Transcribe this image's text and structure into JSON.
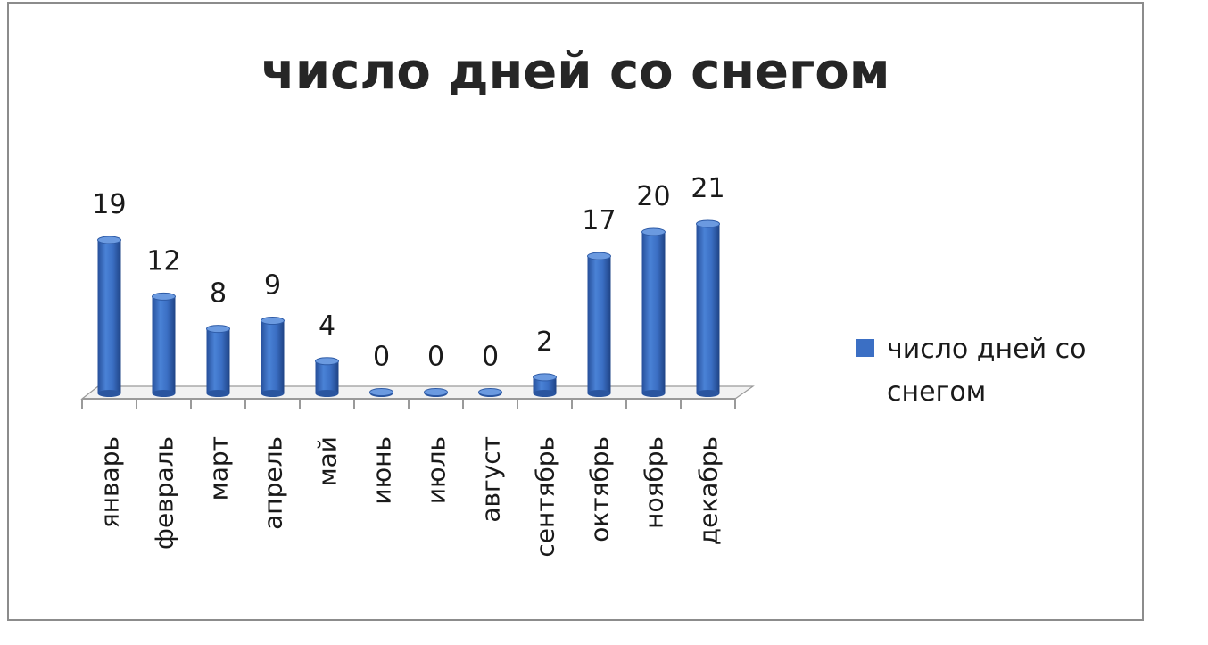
{
  "chart_data": {
    "type": "bar",
    "title": "число дней со снегом",
    "categories": [
      "январь",
      "февраль",
      "март",
      "апрель",
      "май",
      "июнь",
      "июль",
      "август",
      "сентябрь",
      "октябрь",
      "ноябрь",
      "декабрь"
    ],
    "series": [
      {
        "name": "число дней со снегом",
        "values": [
          19,
          12,
          8,
          9,
          4,
          0,
          0,
          0,
          2,
          17,
          20,
          21
        ],
        "color": "#3b6fc4"
      }
    ],
    "data_labels": [
      "19",
      "12",
      "8",
      "9",
      "4",
      "0",
      "0",
      "0",
      "2",
      "17",
      "20",
      "21"
    ],
    "ylim": [
      0,
      21
    ],
    "grid": false,
    "legend_position": "right",
    "style": "3d-cylinder"
  }
}
